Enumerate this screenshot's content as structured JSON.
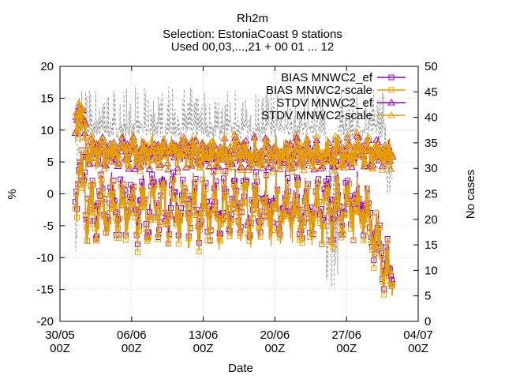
{
  "chart_data": {
    "type": "line",
    "title_lines": [
      "Rh2m",
      "Selection: EstoniaCoast      9 stations",
      "Used 00,03,...,21 + 00 01 ... 12"
    ],
    "xlabel": "Date",
    "ylabel": "%",
    "y2label": "No cases",
    "ylim": [
      -20,
      20
    ],
    "y2lim": [
      0,
      50
    ],
    "y_ticks": [
      "-20",
      "-15",
      "-10",
      "-5",
      "0",
      "5",
      "10",
      "15",
      "20"
    ],
    "y2_ticks": [
      "0",
      "5",
      "10",
      "15",
      "20",
      "25",
      "30",
      "35",
      "40",
      "45",
      "50"
    ],
    "x_ticks": [
      {
        "day": 0,
        "line1": "30/05",
        "line2": "00Z"
      },
      {
        "day": 7,
        "line1": "06/06",
        "line2": "00Z"
      },
      {
        "day": 14,
        "line1": "13/06",
        "line2": "00Z"
      },
      {
        "day": 21,
        "line1": "20/06",
        "line2": "00Z"
      },
      {
        "day": 28,
        "line1": "27/06",
        "line2": "00Z"
      },
      {
        "day": 35,
        "line1": "04/07",
        "line2": "00Z"
      }
    ],
    "xlim_days": [
      0,
      35
    ],
    "legend_position": "top-right",
    "series": [
      {
        "name": "BIAS MNWC2_ef",
        "color": "#9400D3",
        "marker": "square",
        "axis": "y"
      },
      {
        "name": "BIAS MNWC2-scale",
        "color": "#E69F00",
        "marker": "square",
        "axis": "y"
      },
      {
        "name": "STDV MNWC2_ef",
        "color": "#9400D3",
        "marker": "triangle",
        "axis": "y"
      },
      {
        "name": "STDV MNWC2-scale",
        "color": "#E69F00",
        "marker": "triangle",
        "axis": "y"
      },
      {
        "name": "No cases",
        "color": "#A0A0A0",
        "marker": "none",
        "axis": "y2"
      }
    ],
    "step_hours": 1,
    "data_start_day": 1.5,
    "data_end_day": 32.5
  }
}
